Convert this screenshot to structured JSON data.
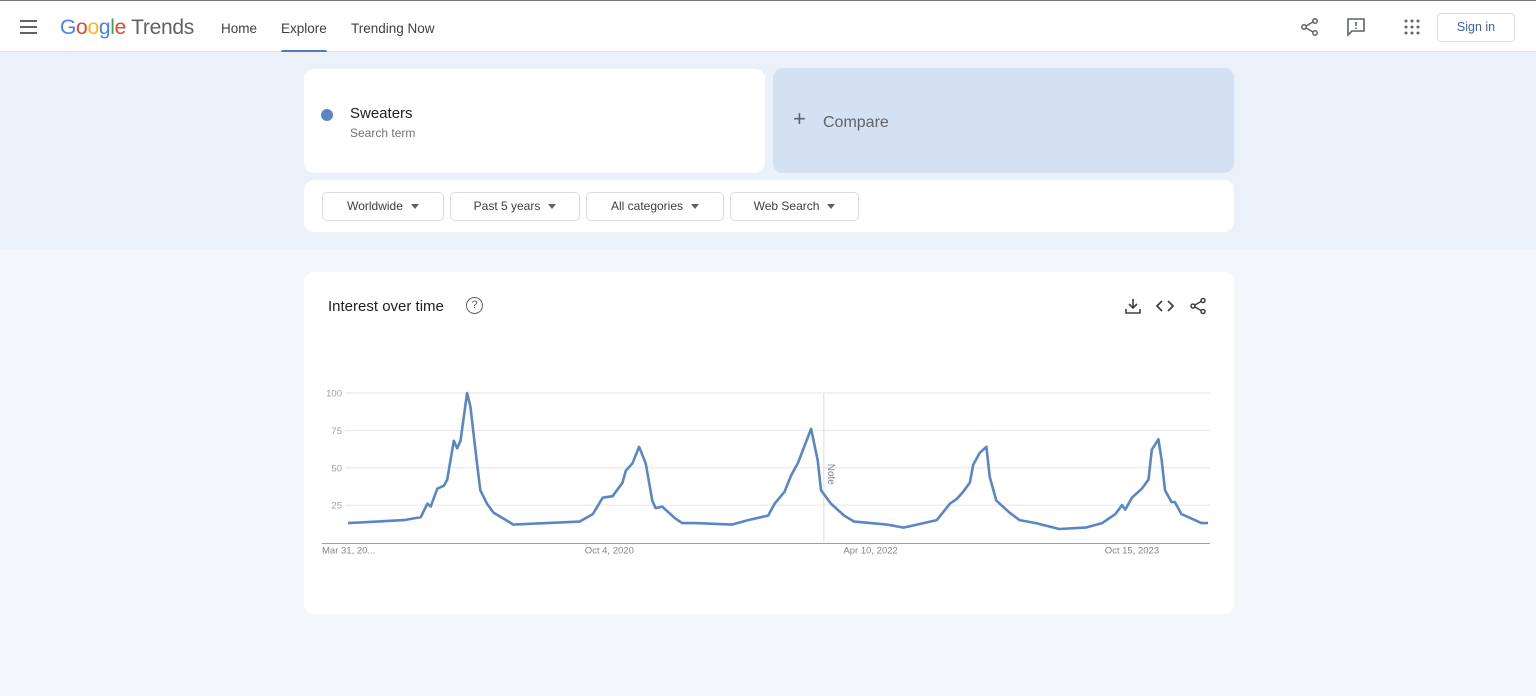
{
  "header": {
    "logo": {
      "google": "Google",
      "trends": "Trends"
    },
    "nav": [
      {
        "label": "Home"
      },
      {
        "label": "Explore",
        "active": true
      },
      {
        "label": "Trending Now"
      }
    ],
    "icons": [
      "menu-icon",
      "share-icon",
      "feedback-icon",
      "apps-grid-icon"
    ],
    "sign_in": "Sign in"
  },
  "search": {
    "term": "Sweaters",
    "subtitle": "Search term",
    "term_color": "#5b86c5",
    "compare_label": "Compare"
  },
  "filters": [
    {
      "label": "Worldwide"
    },
    {
      "label": "Past 5 years"
    },
    {
      "label": "All categories"
    },
    {
      "label": "Web Search"
    }
  ],
  "chart_card": {
    "title": "Interest over time",
    "help": "?",
    "icons": [
      "download-icon",
      "embed-code-icon",
      "share-icon"
    ],
    "note_label": "Note"
  },
  "colors": {
    "accent": "#4f7bc1",
    "line": "#5b86c5",
    "band": "#ebf1fa",
    "compare_bg": "#d3e1f3"
  },
  "chart_data": {
    "type": "line",
    "title": "Interest over time",
    "x_range": [
      "2019-03-31",
      "2024-03-24"
    ],
    "ylim": [
      0,
      100
    ],
    "yticks": [
      25,
      50,
      75,
      100
    ],
    "xticks": [
      {
        "date": "2019-03-31",
        "label": "Mar 31, 20..."
      },
      {
        "date": "2020-10-04",
        "label": "Oct 4, 2020"
      },
      {
        "date": "2022-04-10",
        "label": "Apr 10, 2022"
      },
      {
        "date": "2023-10-15",
        "label": "Oct 15, 2023"
      }
    ],
    "grid": true,
    "note_date": "2022-01-01",
    "series": [
      {
        "color": "#5b86c5",
        "points": [
          [
            "2019-03-31",
            13
          ],
          [
            "2019-07-28",
            15
          ],
          [
            "2019-09-01",
            17
          ],
          [
            "2019-09-15",
            26
          ],
          [
            "2019-09-22",
            24
          ],
          [
            "2019-10-06",
            36
          ],
          [
            "2019-10-20",
            38
          ],
          [
            "2019-10-27",
            42
          ],
          [
            "2019-11-10",
            68
          ],
          [
            "2019-11-17",
            63
          ],
          [
            "2019-11-24",
            68
          ],
          [
            "2019-12-08",
            100
          ],
          [
            "2019-12-15",
            91
          ],
          [
            "2019-12-29",
            53
          ],
          [
            "2020-01-05",
            35
          ],
          [
            "2020-01-19",
            26
          ],
          [
            "2020-02-02",
            20
          ],
          [
            "2020-02-23",
            16
          ],
          [
            "2020-03-15",
            12
          ],
          [
            "2020-08-02",
            14
          ],
          [
            "2020-08-30",
            19
          ],
          [
            "2020-09-20",
            30
          ],
          [
            "2020-10-11",
            31
          ],
          [
            "2020-11-01",
            40
          ],
          [
            "2020-11-08",
            48
          ],
          [
            "2020-11-22",
            53
          ],
          [
            "2020-12-06",
            64
          ],
          [
            "2020-12-20",
            53
          ],
          [
            "2021-01-03",
            28
          ],
          [
            "2021-01-10",
            23
          ],
          [
            "2021-01-24",
            24
          ],
          [
            "2021-02-07",
            20
          ],
          [
            "2021-02-21",
            16
          ],
          [
            "2021-03-07",
            13
          ],
          [
            "2021-04-04",
            13
          ],
          [
            "2021-06-20",
            12
          ],
          [
            "2021-07-25",
            15
          ],
          [
            "2021-09-05",
            18
          ],
          [
            "2021-09-19",
            26
          ],
          [
            "2021-10-10",
            34
          ],
          [
            "2021-10-24",
            45
          ],
          [
            "2021-11-07",
            53
          ],
          [
            "2021-12-05",
            76
          ],
          [
            "2021-12-19",
            55
          ],
          [
            "2021-12-26",
            35
          ],
          [
            "2022-01-16",
            26
          ],
          [
            "2022-02-13",
            18
          ],
          [
            "2022-03-06",
            14
          ],
          [
            "2022-05-15",
            12
          ],
          [
            "2022-06-19",
            10
          ],
          [
            "2022-08-28",
            15
          ],
          [
            "2022-09-25",
            26
          ],
          [
            "2022-10-09",
            29
          ],
          [
            "2022-10-23",
            34
          ],
          [
            "2022-11-06",
            40
          ],
          [
            "2022-11-13",
            52
          ],
          [
            "2022-11-27",
            60
          ],
          [
            "2022-12-11",
            64
          ],
          [
            "2022-12-18",
            44
          ],
          [
            "2023-01-01",
            28
          ],
          [
            "2023-01-15",
            24
          ],
          [
            "2023-01-29",
            20
          ],
          [
            "2023-02-19",
            15
          ],
          [
            "2023-03-26",
            13
          ],
          [
            "2023-05-14",
            9
          ],
          [
            "2023-07-09",
            10
          ],
          [
            "2023-08-13",
            13
          ],
          [
            "2023-09-10",
            19
          ],
          [
            "2023-09-24",
            25
          ],
          [
            "2023-10-01",
            22
          ],
          [
            "2023-10-15",
            30
          ],
          [
            "2023-11-05",
            36
          ],
          [
            "2023-11-19",
            42
          ],
          [
            "2023-11-26",
            62
          ],
          [
            "2023-12-10",
            69
          ],
          [
            "2023-12-17",
            55
          ],
          [
            "2023-12-24",
            35
          ],
          [
            "2024-01-07",
            27
          ],
          [
            "2024-01-14",
            27
          ],
          [
            "2024-01-28",
            19
          ],
          [
            "2024-02-18",
            16
          ],
          [
            "2024-03-10",
            13
          ],
          [
            "2024-03-24",
            13
          ]
        ]
      }
    ]
  }
}
